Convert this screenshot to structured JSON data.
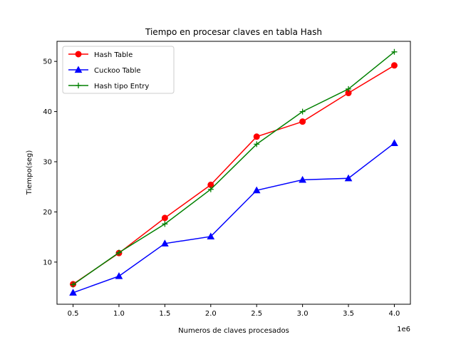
{
  "chart_data": {
    "type": "line",
    "title": "Tiempo en procesar claves en tabla Hash",
    "xlabel": "Numeros de claves procesados",
    "ylabel": "Tiempo(seg)",
    "x_offset_label": "1e6",
    "x": [
      0.5,
      1.0,
      1.5,
      2.0,
      2.5,
      3.0,
      3.5,
      4.0
    ],
    "xlim": [
      0.325,
      4.175
    ],
    "ylim": [
      1.6,
      54.0
    ],
    "x_ticks": [
      0.5,
      1.0,
      1.5,
      2.0,
      2.5,
      3.0,
      3.5,
      4.0
    ],
    "x_tick_labels": [
      "0.5",
      "1.0",
      "1.5",
      "2.0",
      "2.5",
      "3.0",
      "3.5",
      "4.0"
    ],
    "y_ticks": [
      10,
      20,
      30,
      40,
      50
    ],
    "y_tick_labels": [
      "10",
      "20",
      "30",
      "40",
      "50"
    ],
    "grid": false,
    "legend_position": "top-left",
    "series": [
      {
        "name": "Hash Table",
        "color": "#ff0000",
        "marker": "circle",
        "values": [
          5.6,
          11.8,
          18.8,
          25.4,
          35.0,
          38.0,
          43.7,
          49.2
        ]
      },
      {
        "name": "Cuckoo Table",
        "color": "#0000ff",
        "marker": "triangle",
        "values": [
          3.9,
          7.2,
          13.7,
          15.1,
          24.3,
          26.4,
          26.7,
          33.7
        ]
      },
      {
        "name": "Hash tipo Entry",
        "color": "#008000",
        "marker": "plus",
        "values": [
          5.5,
          11.9,
          17.6,
          24.5,
          33.5,
          40.0,
          44.5,
          51.9
        ]
      }
    ]
  }
}
